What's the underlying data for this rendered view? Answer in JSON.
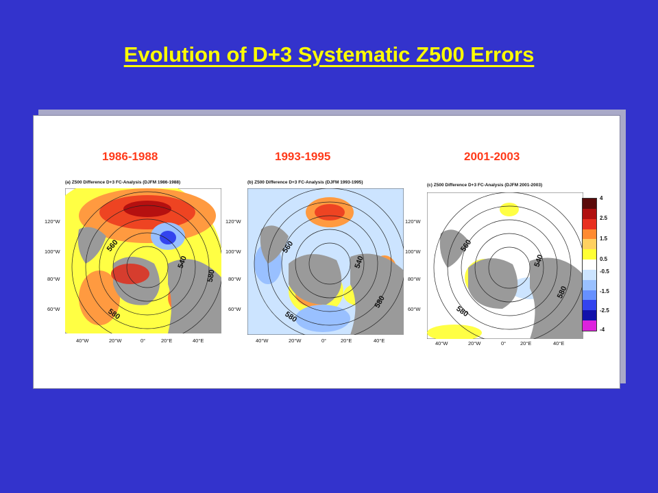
{
  "title": "Evolution of D+3 Systematic Z500 Errors",
  "periods": [
    "1986-1988",
    "1993-1995",
    "2001-2003"
  ],
  "maps": [
    {
      "title": "(a) Z500 Difference D+3 FC-Analysis (DJFM 1986-1988)",
      "lat_labels": [
        "120°W",
        "100°W",
        "80°W",
        "60°W"
      ],
      "lon_labels": [
        "40°W",
        "20°W",
        "0°",
        "20°E",
        "40°E"
      ],
      "contours": [
        "560",
        "540",
        "580",
        "580"
      ]
    },
    {
      "title": "(b) Z500 Difference D+3 FC-Analysis (DJFM 1993-1995)",
      "lat_labels": [
        "120°W",
        "100°W",
        "80°W",
        "60°W"
      ],
      "lon_labels": [
        "40°W",
        "20°W",
        "0°",
        "20°E",
        "40°E"
      ],
      "contours": [
        "560",
        "540",
        "580",
        "580"
      ]
    },
    {
      "title": "(c) Z500 Difference D+3 FC-Analysis (DJFM 2001-2003)",
      "lat_labels": [
        "120°W",
        "100°W",
        "80°W",
        "60°W"
      ],
      "lon_labels": [
        "40°W",
        "20°W",
        "0°",
        "20°E",
        "40°E"
      ],
      "contours": [
        "560",
        "540",
        "580",
        "580"
      ]
    }
  ],
  "colorbar": {
    "labels": [
      "4",
      "2.5",
      "1.5",
      "0.5",
      "-0.5",
      "-1.5",
      "-2.5",
      "-4"
    ],
    "colors": [
      "#5a0a0a",
      "#b01010",
      "#e83020",
      "#ff8a30",
      "#ffd060",
      "#ffff33",
      "#ffffff",
      "#cce4ff",
      "#99c0ff",
      "#6690ff",
      "#3344ee",
      "#1111aa",
      "#dd22dd"
    ]
  }
}
